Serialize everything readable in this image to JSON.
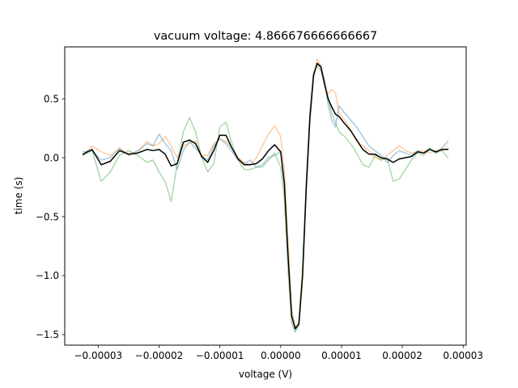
{
  "chart_data": {
    "type": "line",
    "title": "vacuum voltage: 4.866676666666667",
    "xlabel": "voltage (V)",
    "ylabel": "time (s)",
    "xlim": [
      -3.55e-05,
      3.05e-05
    ],
    "ylim": [
      -1.59,
      0.94
    ],
    "grid": false,
    "legend": "none",
    "xticks": [
      -3e-05,
      -2e-05,
      -1e-05,
      0.0,
      1e-05,
      2e-05,
      3e-05
    ],
    "xtick_labels": [
      "−0.00003",
      "−0.00002",
      "−0.00001",
      "0.00000",
      "0.00001",
      "0.00002",
      "0.00003"
    ],
    "yticks": [
      -1.5,
      -1.0,
      -0.5,
      0.0,
      0.5
    ],
    "ytick_labels": [
      "−1.5",
      "−1.0",
      "−0.5",
      "0.0",
      "0.5"
    ],
    "series": [
      {
        "color": "#1f77b4",
        "alpha": 0.4,
        "width": 1.5,
        "x": [
          -3.25e-05,
          -3.1e-05,
          -2.95e-05,
          -2.8e-05,
          -2.65e-05,
          -2.5e-05,
          -2.35e-05,
          -2.2e-05,
          -2.1e-05,
          -2e-05,
          -1.9e-05,
          -1.8e-05,
          -1.7e-05,
          -1.6e-05,
          -1.5e-05,
          -1.4e-05,
          -1.3e-05,
          -1.2e-05,
          -1.1e-05,
          -1e-05,
          -9e-06,
          -8e-06,
          -7e-06,
          -6e-06,
          -5e-06,
          -4e-06,
          -3e-06,
          -2e-06,
          -1e-06,
          0.0,
          6e-07,
          1.2e-06,
          1.8e-06,
          2.4e-06,
          3e-06,
          3.6e-06,
          4.2e-06,
          4.8e-06,
          5.4e-06,
          6e-06,
          6.6e-06,
          7.2e-06,
          7.8e-06,
          8.4e-06,
          9e-06,
          9.6e-06,
          1.05e-05,
          1.15e-05,
          1.25e-05,
          1.35e-05,
          1.45e-05,
          1.55e-05,
          1.65e-05,
          1.75e-05,
          1.85e-05,
          1.95e-05,
          2.05e-05,
          2.15e-05,
          2.25e-05,
          2.35e-05,
          2.45e-05,
          2.55e-05,
          2.65e-05,
          2.75e-05
        ],
        "y": [
          0.05,
          0.06,
          -0.02,
          0.0,
          0.08,
          0.02,
          0.06,
          0.12,
          0.1,
          0.2,
          0.12,
          0.06,
          -0.1,
          0.06,
          0.14,
          0.08,
          0.02,
          -0.02,
          0.1,
          0.16,
          0.12,
          0.05,
          -0.02,
          -0.05,
          -0.02,
          -0.08,
          -0.06,
          0.0,
          0.02,
          0.05,
          -0.2,
          -0.8,
          -1.35,
          -1.46,
          -1.42,
          -1.0,
          -0.25,
          0.35,
          0.7,
          0.8,
          0.78,
          0.66,
          0.45,
          0.32,
          0.26,
          0.44,
          0.38,
          0.32,
          0.26,
          0.18,
          0.1,
          0.06,
          0.02,
          -0.04,
          0.02,
          0.06,
          0.04,
          0.02,
          0.06,
          0.04,
          0.08,
          0.04,
          0.08,
          0.14
        ]
      },
      {
        "color": "#ff7f0e",
        "alpha": 0.4,
        "width": 1.5,
        "x": [
          -3.25e-05,
          -3.1e-05,
          -2.95e-05,
          -2.8e-05,
          -2.65e-05,
          -2.5e-05,
          -2.35e-05,
          -2.2e-05,
          -2.1e-05,
          -2e-05,
          -1.9e-05,
          -1.8e-05,
          -1.7e-05,
          -1.6e-05,
          -1.5e-05,
          -1.4e-05,
          -1.3e-05,
          -1.2e-05,
          -1.1e-05,
          -1e-05,
          -9e-06,
          -8e-06,
          -7e-06,
          -6e-06,
          -5e-06,
          -4e-06,
          -3e-06,
          -2e-06,
          -1e-06,
          0.0,
          6e-07,
          1.2e-06,
          1.8e-06,
          2.4e-06,
          3e-06,
          3.6e-06,
          4.2e-06,
          4.8e-06,
          5.4e-06,
          6e-06,
          6.6e-06,
          7.2e-06,
          7.8e-06,
          8.4e-06,
          9e-06,
          9.6e-06,
          1.05e-05,
          1.15e-05,
          1.25e-05,
          1.35e-05,
          1.45e-05,
          1.55e-05,
          1.65e-05,
          1.75e-05,
          1.85e-05,
          1.95e-05,
          2.05e-05,
          2.15e-05,
          2.25e-05,
          2.35e-05,
          2.45e-05,
          2.55e-05,
          2.65e-05,
          2.75e-05
        ],
        "y": [
          0.02,
          0.1,
          0.05,
          0.02,
          0.08,
          0.02,
          0.04,
          0.14,
          0.1,
          0.12,
          0.18,
          0.1,
          0.0,
          0.1,
          0.12,
          0.14,
          0.02,
          0.02,
          0.12,
          0.16,
          0.14,
          0.08,
          0.0,
          -0.04,
          -0.06,
          0.0,
          0.1,
          0.2,
          0.27,
          0.18,
          -0.1,
          -0.7,
          -1.28,
          -1.44,
          -1.4,
          -1.05,
          -0.3,
          0.3,
          0.68,
          0.84,
          0.78,
          0.6,
          0.54,
          0.58,
          0.55,
          0.38,
          0.32,
          0.24,
          0.14,
          0.1,
          0.06,
          0.0,
          -0.02,
          0.02,
          0.06,
          0.1,
          0.06,
          0.04,
          0.05,
          0.06,
          0.04,
          0.06,
          0.06,
          0.08
        ]
      },
      {
        "color": "#2ca02c",
        "alpha": 0.4,
        "width": 1.5,
        "x": [
          -3.25e-05,
          -3.1e-05,
          -2.95e-05,
          -2.8e-05,
          -2.65e-05,
          -2.5e-05,
          -2.35e-05,
          -2.2e-05,
          -2.1e-05,
          -2e-05,
          -1.9e-05,
          -1.8e-05,
          -1.7e-05,
          -1.6e-05,
          -1.5e-05,
          -1.4e-05,
          -1.3e-05,
          -1.2e-05,
          -1.1e-05,
          -1e-05,
          -9e-06,
          -8e-06,
          -7e-06,
          -6e-06,
          -5e-06,
          -4e-06,
          -3e-06,
          -2e-06,
          -1e-06,
          0.0,
          6e-07,
          1.2e-06,
          1.8e-06,
          2.4e-06,
          3e-06,
          3.6e-06,
          4.2e-06,
          4.8e-06,
          5.4e-06,
          6e-06,
          6.6e-06,
          7.2e-06,
          7.8e-06,
          8.4e-06,
          9e-06,
          9.6e-06,
          1.05e-05,
          1.15e-05,
          1.25e-05,
          1.35e-05,
          1.45e-05,
          1.55e-05,
          1.65e-05,
          1.75e-05,
          1.85e-05,
          1.95e-05,
          2.05e-05,
          2.15e-05,
          2.25e-05,
          2.35e-05,
          2.45e-05,
          2.55e-05,
          2.65e-05,
          2.75e-05
        ],
        "y": [
          0.02,
          0.06,
          -0.2,
          -0.12,
          0.02,
          0.06,
          0.02,
          -0.04,
          -0.02,
          -0.12,
          -0.2,
          -0.37,
          -0.05,
          0.22,
          0.34,
          0.22,
          0.0,
          -0.12,
          -0.05,
          0.26,
          0.3,
          0.12,
          -0.02,
          -0.1,
          -0.1,
          -0.08,
          -0.08,
          -0.02,
          0.04,
          -0.08,
          -0.35,
          -0.95,
          -1.4,
          -1.48,
          -1.4,
          -0.95,
          -0.2,
          0.38,
          0.72,
          0.78,
          0.74,
          0.64,
          0.5,
          0.38,
          0.3,
          0.22,
          0.18,
          0.12,
          0.04,
          -0.06,
          -0.08,
          0.02,
          -0.02,
          0.0,
          -0.2,
          -0.18,
          -0.1,
          -0.02,
          0.04,
          0.02,
          0.08,
          0.04,
          0.06,
          0.0
        ]
      },
      {
        "color": "#000000",
        "alpha": 1.0,
        "width": 1.5,
        "x": [
          -3.25e-05,
          -3.1e-05,
          -2.95e-05,
          -2.8e-05,
          -2.65e-05,
          -2.5e-05,
          -2.35e-05,
          -2.2e-05,
          -2.1e-05,
          -2e-05,
          -1.9e-05,
          -1.8e-05,
          -1.7e-05,
          -1.6e-05,
          -1.5e-05,
          -1.4e-05,
          -1.3e-05,
          -1.2e-05,
          -1.1e-05,
          -1e-05,
          -9e-06,
          -8e-06,
          -7e-06,
          -6e-06,
          -5e-06,
          -4e-06,
          -3e-06,
          -2e-06,
          -1e-06,
          0.0,
          6e-07,
          1.2e-06,
          1.8e-06,
          2.4e-06,
          3e-06,
          3.6e-06,
          4.2e-06,
          4.8e-06,
          5.4e-06,
          6e-06,
          6.6e-06,
          7.2e-06,
          7.8e-06,
          8.4e-06,
          9e-06,
          9.6e-06,
          1.05e-05,
          1.15e-05,
          1.25e-05,
          1.35e-05,
          1.45e-05,
          1.55e-05,
          1.65e-05,
          1.75e-05,
          1.85e-05,
          1.95e-05,
          2.05e-05,
          2.15e-05,
          2.25e-05,
          2.35e-05,
          2.45e-05,
          2.55e-05,
          2.65e-05,
          2.75e-05
        ],
        "y": [
          0.03,
          0.07,
          -0.06,
          -0.03,
          0.06,
          0.03,
          0.04,
          0.07,
          0.06,
          0.07,
          0.03,
          -0.07,
          -0.05,
          0.13,
          0.15,
          0.12,
          0.01,
          -0.04,
          0.06,
          0.19,
          0.19,
          0.08,
          -0.01,
          -0.06,
          -0.06,
          -0.05,
          -0.01,
          0.06,
          0.11,
          0.05,
          -0.22,
          -0.82,
          -1.34,
          -1.45,
          -1.41,
          -1.0,
          -0.25,
          0.34,
          0.7,
          0.8,
          0.77,
          0.63,
          0.5,
          0.43,
          0.37,
          0.35,
          0.29,
          0.23,
          0.15,
          0.07,
          0.03,
          0.03,
          0.0,
          -0.01,
          -0.04,
          -0.01,
          0.0,
          0.01,
          0.05,
          0.04,
          0.07,
          0.05,
          0.07,
          0.07
        ]
      }
    ]
  }
}
